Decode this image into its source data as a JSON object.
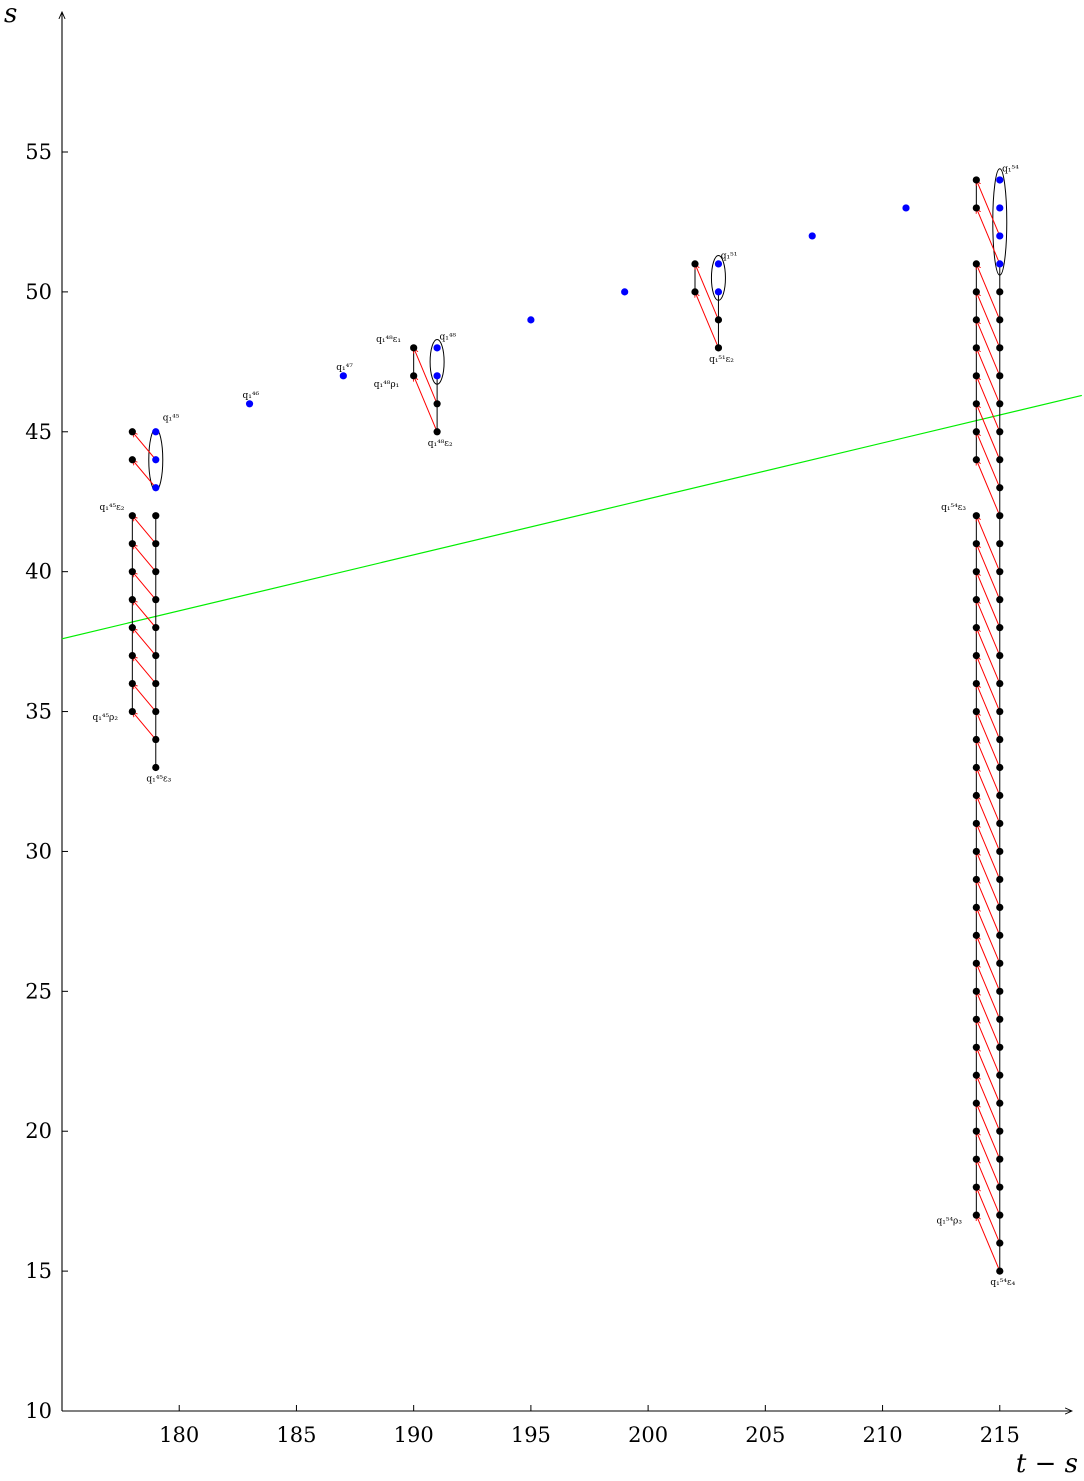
{
  "chart_data": {
    "type": "scatter",
    "xlabel": "t − s",
    "ylabel": "s",
    "xlim": [
      175,
      218.5
    ],
    "ylim": [
      10,
      60
    ],
    "x_ticks": [
      180,
      185,
      190,
      195,
      200,
      205,
      210,
      215
    ],
    "y_ticks": [
      10,
      15,
      20,
      25,
      30,
      35,
      40,
      45,
      50,
      55
    ],
    "grid": false,
    "colors": {
      "black_dot": "#000000",
      "blue_dot": "#0000ff",
      "arrow": "#ff0000",
      "reference_line": "#00ee00",
      "axis": "#000000"
    },
    "reference_line": {
      "x": [
        175,
        218.5
      ],
      "y": [
        37.6,
        46.3
      ]
    },
    "groups": [
      {
        "name": "q1^45",
        "black": [
          [
            178,
            42
          ],
          [
            178,
            41
          ],
          [
            178,
            40
          ],
          [
            178,
            39
          ],
          [
            178,
            38
          ],
          [
            178,
            37
          ],
          [
            178,
            36
          ],
          [
            178,
            35
          ],
          [
            178,
            44
          ],
          [
            178,
            45
          ],
          [
            179,
            42
          ],
          [
            179,
            41
          ],
          [
            179,
            40
          ],
          [
            179,
            39
          ],
          [
            179,
            38
          ],
          [
            179,
            37
          ],
          [
            179,
            36
          ],
          [
            179,
            35
          ],
          [
            179,
            34
          ],
          [
            179,
            33
          ]
        ],
        "blue": [
          [
            179,
            43
          ],
          [
            179,
            44
          ],
          [
            179,
            45
          ]
        ],
        "verticals": [
          [
            178,
            35,
            42
          ],
          [
            179,
            33,
            42
          ]
        ],
        "arrows": [
          [
            179,
            34,
            178,
            35
          ],
          [
            179,
            35,
            178,
            36
          ],
          [
            179,
            36,
            178,
            37
          ],
          [
            179,
            37,
            178,
            38
          ],
          [
            179,
            38,
            178,
            39
          ],
          [
            179,
            39,
            178,
            40
          ],
          [
            179,
            40,
            178,
            41
          ],
          [
            179,
            41,
            178,
            42
          ],
          [
            179,
            43,
            178,
            44
          ],
          [
            179,
            44,
            178,
            45
          ]
        ],
        "ellipse": [
          179,
          44,
          1.1
        ],
        "labels": [
          {
            "text": "q₁⁴⁵",
            "x": 179.3,
            "y": 45.4
          },
          {
            "text": "q₁⁴⁵ε₂",
            "x": 176.6,
            "y": 42.2
          },
          {
            "text": "q₁⁴⁵ρ₂",
            "x": 176.3,
            "y": 34.7
          },
          {
            "text": "q₁⁴⁵ε₃",
            "x": 178.6,
            "y": 32.5
          }
        ]
      },
      {
        "name": "q1^48",
        "black": [
          [
            190,
            48
          ],
          [
            190,
            47
          ],
          [
            191,
            46
          ],
          [
            191,
            45
          ]
        ],
        "blue": [
          [
            191,
            47
          ],
          [
            191,
            48
          ]
        ],
        "verticals": [
          [
            190,
            47,
            48
          ],
          [
            191,
            45,
            47
          ]
        ],
        "arrows": [
          [
            191,
            45,
            190,
            47
          ],
          [
            191,
            46,
            190,
            48
          ]
        ],
        "ellipse": [
          191,
          47.5,
          0.8
        ],
        "labels": [
          {
            "text": "q₁⁴⁸ε₁",
            "x": 188.4,
            "y": 48.2
          },
          {
            "text": "q₁⁴⁸",
            "x": 191.1,
            "y": 48.3
          },
          {
            "text": "q₁⁴⁸ρ₁",
            "x": 188.3,
            "y": 46.6
          },
          {
            "text": "q₁⁴⁸ε₂",
            "x": 190.6,
            "y": 44.5
          }
        ]
      },
      {
        "name": "q1^51",
        "black": [
          [
            202,
            51
          ],
          [
            202,
            50
          ],
          [
            203,
            49
          ],
          [
            203,
            48
          ]
        ],
        "blue": [
          [
            203,
            50
          ],
          [
            203,
            51
          ]
        ],
        "verticals": [
          [
            202,
            50,
            51
          ],
          [
            203,
            48,
            50
          ]
        ],
        "arrows": [
          [
            203,
            48,
            202,
            50
          ],
          [
            203,
            49,
            202,
            51
          ]
        ],
        "ellipse": [
          203,
          50.5,
          0.8
        ],
        "labels": [
          {
            "text": "q₁⁵¹",
            "x": 203.1,
            "y": 51.2
          },
          {
            "text": "q₁⁵¹ε₂",
            "x": 202.6,
            "y": 47.5
          }
        ]
      },
      {
        "name": "q1^54",
        "black": [
          [
            214,
            17
          ],
          [
            214,
            18
          ],
          [
            214,
            19
          ],
          [
            214,
            20
          ],
          [
            214,
            21
          ],
          [
            214,
            22
          ],
          [
            214,
            23
          ],
          [
            214,
            24
          ],
          [
            214,
            25
          ],
          [
            214,
            26
          ],
          [
            214,
            27
          ],
          [
            214,
            28
          ],
          [
            214,
            29
          ],
          [
            214,
            30
          ],
          [
            214,
            31
          ],
          [
            214,
            32
          ],
          [
            214,
            33
          ],
          [
            214,
            34
          ],
          [
            214,
            35
          ],
          [
            214,
            36
          ],
          [
            214,
            37
          ],
          [
            214,
            38
          ],
          [
            214,
            39
          ],
          [
            214,
            40
          ],
          [
            214,
            41
          ],
          [
            214,
            42
          ],
          [
            214,
            44
          ],
          [
            214,
            45
          ],
          [
            214,
            46
          ],
          [
            214,
            47
          ],
          [
            214,
            48
          ],
          [
            214,
            49
          ],
          [
            214,
            50
          ],
          [
            214,
            51
          ],
          [
            214,
            53
          ],
          [
            214,
            54
          ],
          [
            215,
            15
          ],
          [
            215,
            16
          ],
          [
            215,
            17
          ],
          [
            215,
            18
          ],
          [
            215,
            19
          ],
          [
            215,
            20
          ],
          [
            215,
            21
          ],
          [
            215,
            22
          ],
          [
            215,
            23
          ],
          [
            215,
            24
          ],
          [
            215,
            25
          ],
          [
            215,
            26
          ],
          [
            215,
            27
          ],
          [
            215,
            28
          ],
          [
            215,
            29
          ],
          [
            215,
            30
          ],
          [
            215,
            31
          ],
          [
            215,
            32
          ],
          [
            215,
            33
          ],
          [
            215,
            34
          ],
          [
            215,
            35
          ],
          [
            215,
            36
          ],
          [
            215,
            37
          ],
          [
            215,
            38
          ],
          [
            215,
            39
          ],
          [
            215,
            40
          ],
          [
            215,
            41
          ],
          [
            215,
            42
          ],
          [
            215,
            43
          ],
          [
            215,
            44
          ],
          [
            215,
            45
          ],
          [
            215,
            46
          ],
          [
            215,
            47
          ],
          [
            215,
            48
          ],
          [
            215,
            49
          ],
          [
            215,
            50
          ]
        ],
        "blue": [
          [
            215,
            51
          ],
          [
            215,
            52
          ],
          [
            215,
            53
          ],
          [
            215,
            54
          ]
        ],
        "verticals": [
          [
            214,
            17,
            42
          ],
          [
            214,
            44,
            51
          ],
          [
            214,
            53,
            54
          ],
          [
            215,
            15,
            51
          ]
        ],
        "arrows": [
          [
            215,
            15,
            214,
            17
          ],
          [
            215,
            16,
            214,
            18
          ],
          [
            215,
            17,
            214,
            19
          ],
          [
            215,
            18,
            214,
            20
          ],
          [
            215,
            19,
            214,
            21
          ],
          [
            215,
            20,
            214,
            22
          ],
          [
            215,
            21,
            214,
            23
          ],
          [
            215,
            22,
            214,
            24
          ],
          [
            215,
            23,
            214,
            25
          ],
          [
            215,
            24,
            214,
            26
          ],
          [
            215,
            25,
            214,
            27
          ],
          [
            215,
            26,
            214,
            28
          ],
          [
            215,
            27,
            214,
            29
          ],
          [
            215,
            28,
            214,
            30
          ],
          [
            215,
            29,
            214,
            31
          ],
          [
            215,
            30,
            214,
            32
          ],
          [
            215,
            31,
            214,
            33
          ],
          [
            215,
            32,
            214,
            34
          ],
          [
            215,
            33,
            214,
            35
          ],
          [
            215,
            34,
            214,
            36
          ],
          [
            215,
            35,
            214,
            37
          ],
          [
            215,
            36,
            214,
            38
          ],
          [
            215,
            37,
            214,
            39
          ],
          [
            215,
            38,
            214,
            40
          ],
          [
            215,
            39,
            214,
            41
          ],
          [
            215,
            40,
            214,
            42
          ],
          [
            215,
            42,
            214,
            44
          ],
          [
            215,
            43,
            214,
            45
          ],
          [
            215,
            44,
            214,
            46
          ],
          [
            215,
            45,
            214,
            47
          ],
          [
            215,
            46,
            214,
            48
          ],
          [
            215,
            47,
            214,
            49
          ],
          [
            215,
            48,
            214,
            50
          ],
          [
            215,
            49,
            214,
            51
          ],
          [
            215,
            51,
            214,
            53
          ],
          [
            215,
            52,
            214,
            54
          ]
        ],
        "ellipse": [
          215,
          52.5,
          1.9
        ],
        "labels": [
          {
            "text": "q₁⁵⁴",
            "x": 215.1,
            "y": 54.3
          },
          {
            "text": "q₁⁵⁴ε₃",
            "x": 212.5,
            "y": 42.2
          },
          {
            "text": "q₁⁵⁴ρ₃",
            "x": 212.3,
            "y": 16.7
          },
          {
            "text": "q₁⁵⁴ε₄",
            "x": 214.6,
            "y": 14.5
          }
        ]
      }
    ],
    "isolated_points": {
      "blue": [
        [
          183,
          46
        ],
        [
          187,
          47
        ],
        [
          195,
          49
        ],
        [
          199,
          50
        ],
        [
          207,
          52
        ],
        [
          211,
          53
        ]
      ],
      "labels": [
        {
          "text": "q₁⁴⁶",
          "x": 182.7,
          "y": 46.2
        },
        {
          "text": "q₁⁴⁷",
          "x": 186.7,
          "y": 47.2
        }
      ]
    }
  }
}
